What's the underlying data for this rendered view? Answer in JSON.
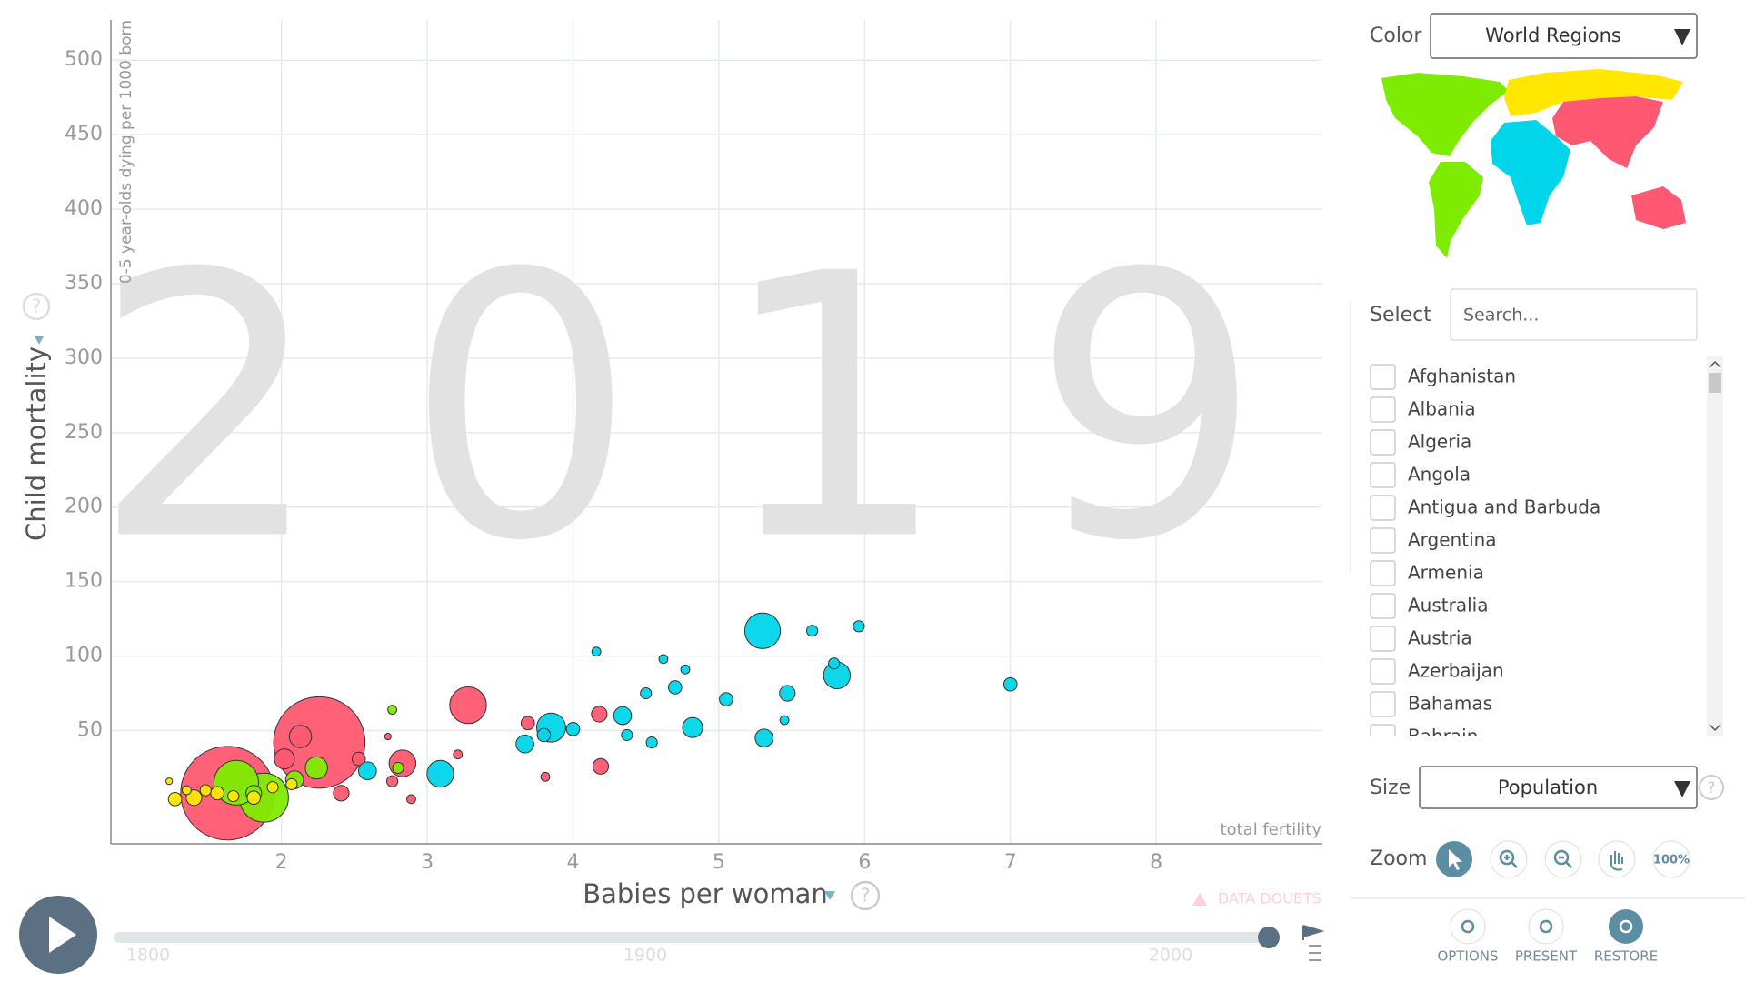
{
  "chart_data": {
    "type": "scatter",
    "year": "2019",
    "xlabel": "Babies per woman",
    "ylabel": "Child mortality",
    "ysubtitle": "0-5 year-olds dying per 1000 born",
    "xnote": "total fertility",
    "xlim": [
      0.83,
      9.14
    ],
    "ylim": [
      -26,
      527
    ],
    "xticks": [
      2,
      3,
      4,
      5,
      6,
      7,
      8
    ],
    "yticks": [
      50,
      100,
      150,
      200,
      250,
      300,
      350,
      400,
      450,
      500
    ],
    "grid": true,
    "series": [
      {
        "color": "#ff5872",
        "x": [
          1.63,
          2.26,
          3.28,
          2.83,
          2.13,
          2.02,
          4.18,
          4.19,
          2.41,
          3.69,
          2.53,
          2.76,
          2.89,
          3.21,
          3.81,
          2.73
        ],
        "values": [
          8,
          42,
          67,
          28,
          46,
          31,
          61,
          26,
          8,
          55,
          31,
          16,
          4,
          34,
          19,
          46
        ],
        "sizes": [
          1433,
          1366,
          220,
          117,
          81,
          66,
          40,
          40,
          40,
          29,
          29,
          20,
          13,
          13,
          13,
          7
        ]
      },
      {
        "color": "#7feb00",
        "x": [
          1.88,
          1.69,
          2.24,
          2.09,
          1.81,
          2.8,
          2.76
        ],
        "values": [
          5,
          15,
          25,
          17,
          8,
          25,
          64
        ],
        "sizes": [
          393,
          325,
          81,
          52,
          40,
          20,
          13
        ]
      },
      {
        "color": "#00d5e9",
        "x": [
          5.3,
          3.85,
          5.81,
          3.09,
          4.82,
          4.34,
          3.67,
          2.59,
          5.31,
          5.47,
          7.0,
          5.05,
          4.0,
          4.7,
          3.8,
          5.96,
          5.64,
          5.79,
          4.5,
          4.54,
          4.37,
          4.62,
          4.16,
          5.45,
          4.77
        ],
        "values": [
          117,
          52,
          87,
          21,
          52,
          60,
          41,
          23,
          45,
          75,
          81,
          71,
          51,
          79,
          47,
          120,
          117,
          95,
          75,
          42,
          47,
          98,
          103,
          57,
          91
        ],
        "sizes": [
          208,
          137,
          117,
          117,
          66,
          52,
          52,
          52,
          52,
          40,
          29,
          29,
          29,
          29,
          29,
          20,
          20,
          20,
          20,
          20,
          20,
          13,
          13,
          13,
          13
        ]
      },
      {
        "color": "#ffe700",
        "x": [
          1.4,
          1.27,
          1.56,
          1.81,
          1.67,
          1.48,
          1.94,
          2.07,
          1.35,
          1.23
        ],
        "values": [
          5,
          4,
          8,
          5,
          6,
          10,
          12,
          14,
          10,
          16
        ],
        "sizes": [
          40,
          29,
          29,
          29,
          20,
          20,
          20,
          20,
          13,
          7
        ]
      }
    ]
  },
  "ui": {
    "timeline_labels": [
      "1800",
      "1900",
      "2000"
    ],
    "help_icon": "?",
    "data_doubts": "DATA DOUBTS",
    "color_label": "Color",
    "color_value": "World Regions",
    "select_label": "Select",
    "search_placeholder": "Search...",
    "countries": [
      "Afghanistan",
      "Albania",
      "Algeria",
      "Angola",
      "Antigua and Barbuda",
      "Argentina",
      "Armenia",
      "Australia",
      "Austria",
      "Azerbaijan",
      "Bahamas",
      "Bahrain"
    ],
    "size_label": "Size",
    "size_value": "Population",
    "zoom_label": "Zoom",
    "zoom_reset": "100%",
    "buttons": [
      "OPTIONS",
      "PRESENT",
      "RESTORE"
    ]
  }
}
